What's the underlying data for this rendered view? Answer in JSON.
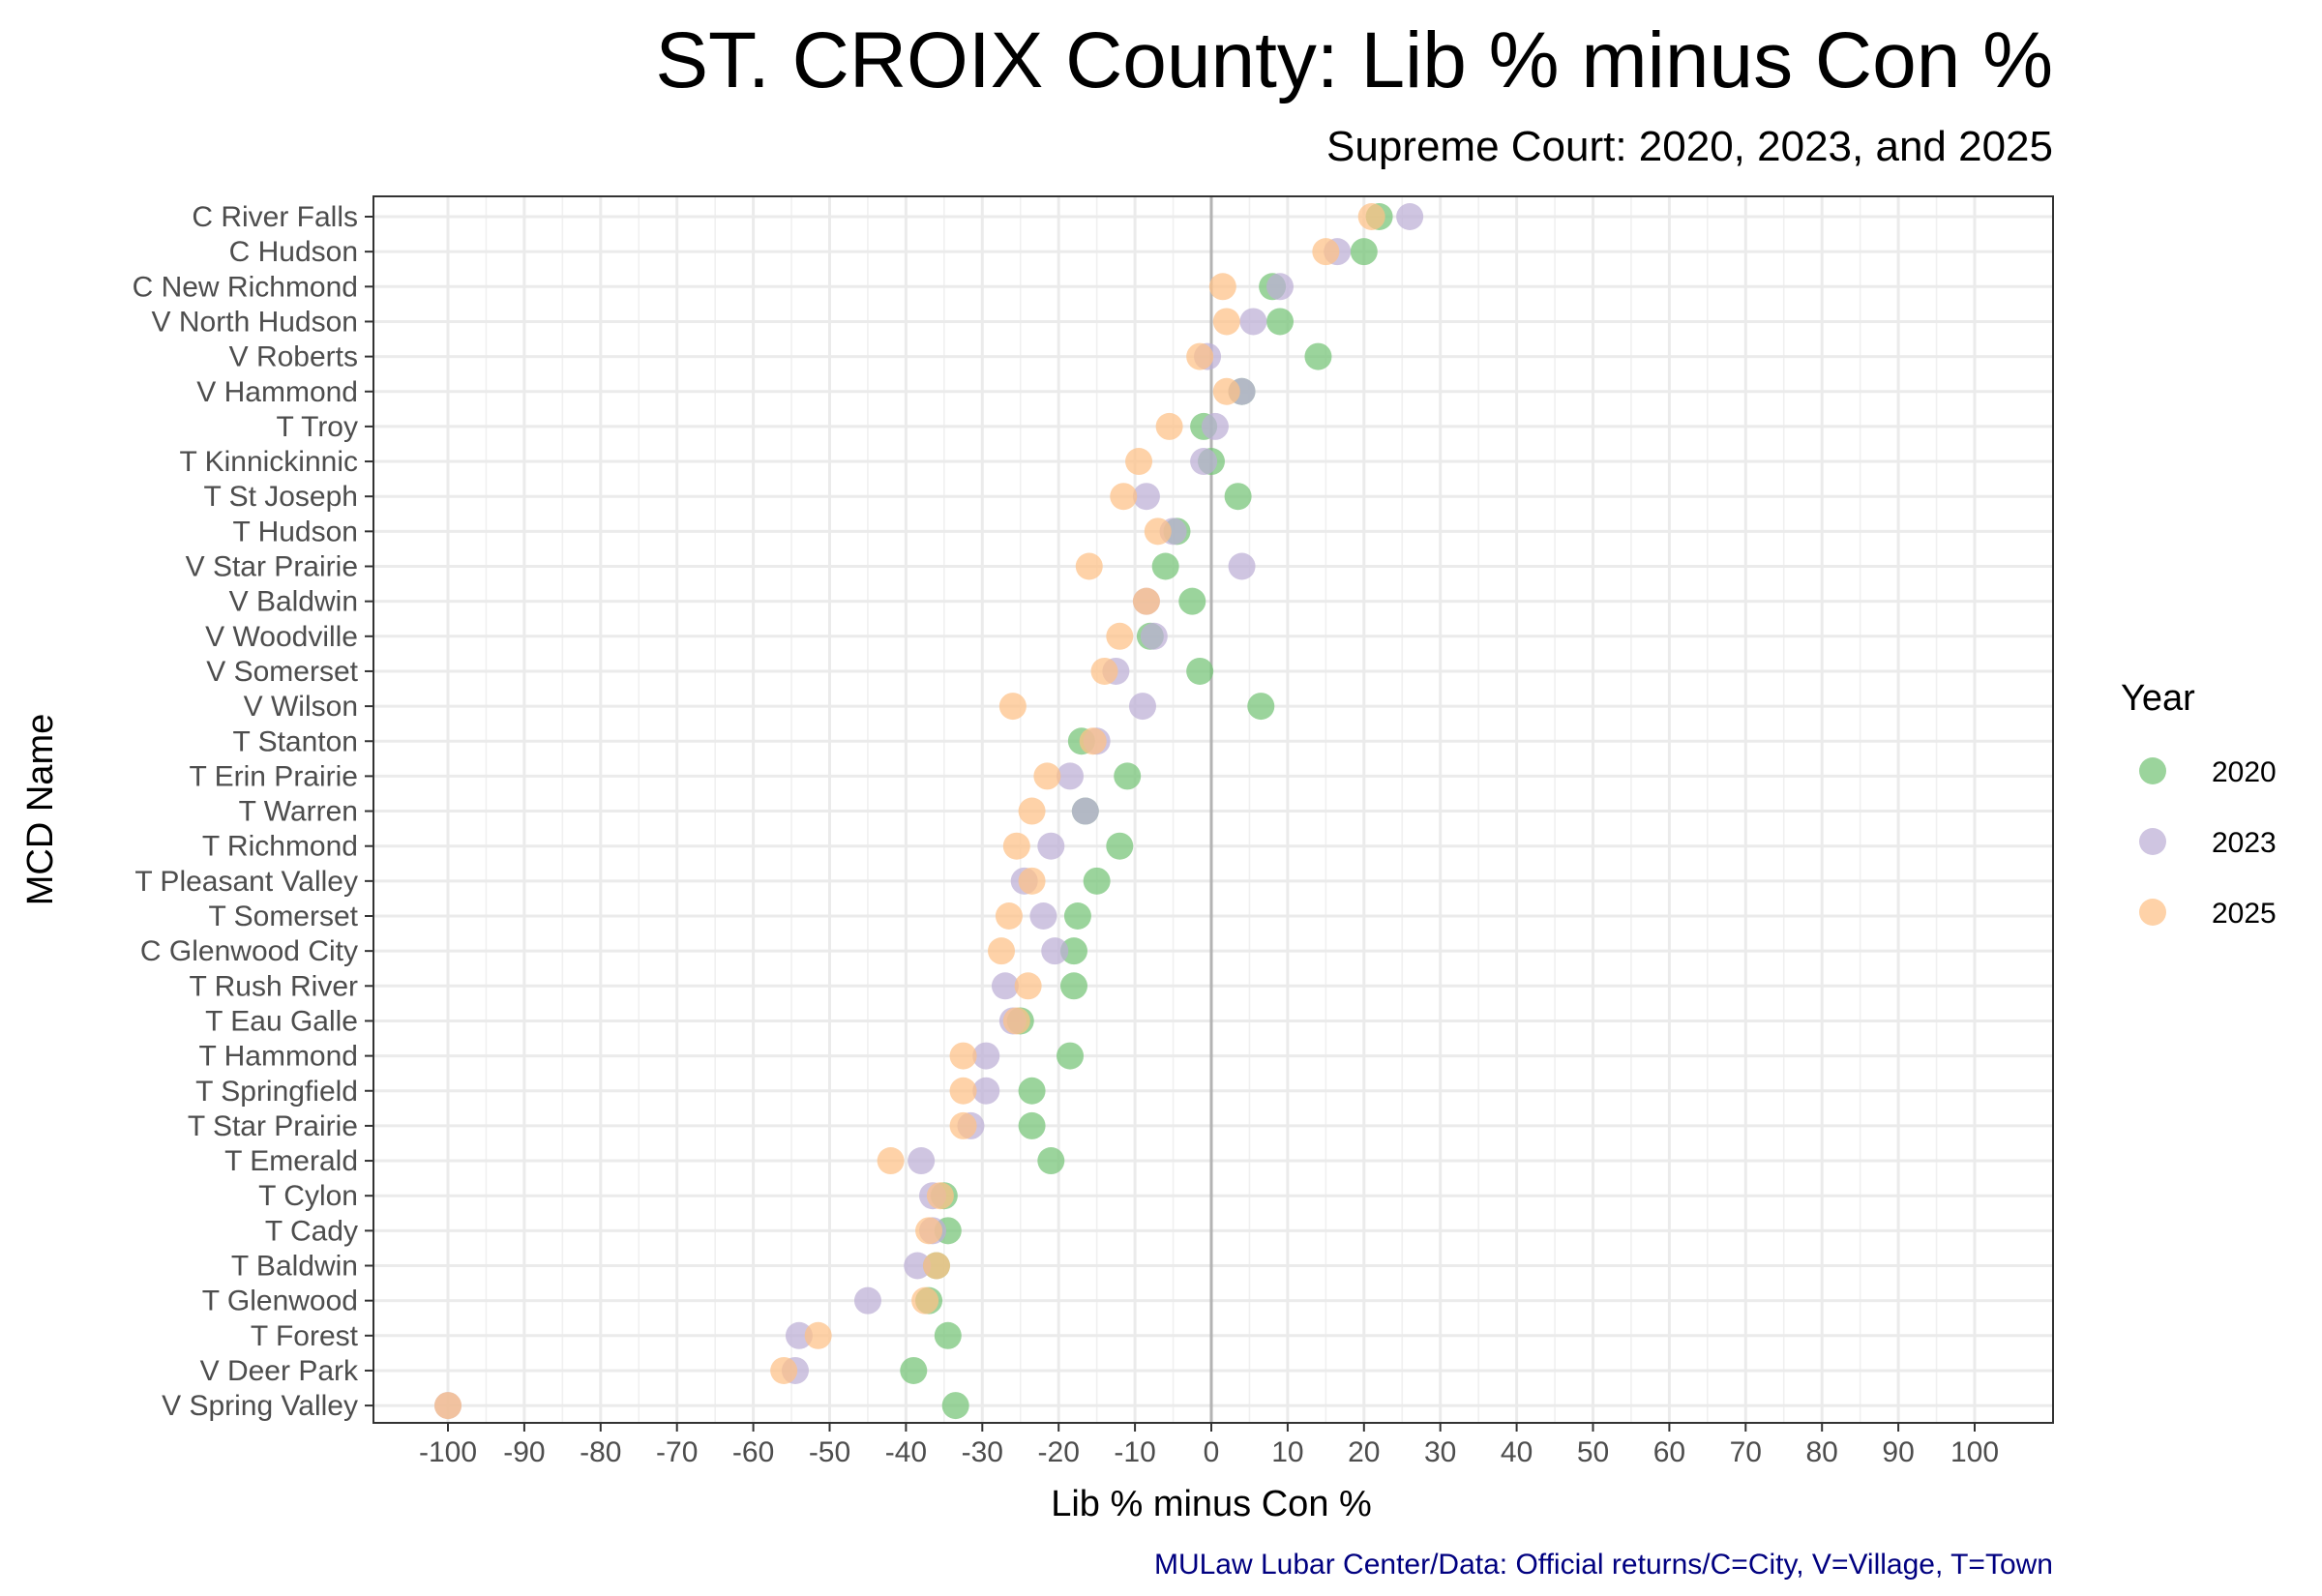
{
  "chart_data": {
    "type": "scatter",
    "title": "ST. CROIX County: Lib % minus Con %",
    "subtitle": "Supreme Court: 2020, 2023, and 2025",
    "xlabel": "Lib % minus Con %",
    "ylabel": "MCD Name",
    "xlim": [
      -110,
      110
    ],
    "x_ticks": [
      -100,
      -90,
      -80,
      -70,
      -60,
      -50,
      -40,
      -30,
      -20,
      -10,
      0,
      10,
      20,
      30,
      40,
      50,
      60,
      70,
      80,
      90,
      100
    ],
    "x_tick_labels": [
      "-100",
      "-90",
      "-80",
      "-70",
      "-60",
      "-50",
      "-40",
      "-30",
      "-20",
      "-10",
      "0",
      "10",
      "20",
      "30",
      "40",
      "50",
      "60",
      "70",
      "80",
      "90",
      "100"
    ],
    "grid": true,
    "reference_line_x": 0,
    "legend": {
      "title": "Year",
      "position": "right"
    },
    "categories": [
      "C River Falls",
      "C Hudson",
      "C New Richmond",
      "V North Hudson",
      "V Roberts",
      "V Hammond",
      "T Troy",
      "T Kinnickinnic",
      "T St Joseph",
      "T Hudson",
      "V Star Prairie",
      "V Baldwin",
      "V Woodville",
      "V Somerset",
      "V Wilson",
      "T Stanton",
      "T Erin Prairie",
      "T Warren",
      "T Richmond",
      "T Pleasant Valley",
      "T Somerset",
      "C Glenwood City",
      "T Rush River",
      "T Eau Galle",
      "T Hammond",
      "T Springfield",
      "T Star Prairie",
      "T Emerald",
      "T Cylon",
      "T Cady",
      "T Baldwin",
      "T Glenwood",
      "T Forest",
      "V Deer Park",
      "V Spring Valley"
    ],
    "series": [
      {
        "name": "2020",
        "color": "#74c476",
        "values": [
          22,
          20,
          8,
          9,
          14,
          4,
          -1,
          0,
          3.5,
          -4.5,
          -6,
          -2.5,
          -8,
          -1.5,
          6.5,
          -17,
          -11,
          -16.5,
          -12,
          -15,
          -17.5,
          -18,
          -18,
          -25,
          -18.5,
          -23.5,
          -23.5,
          -21,
          -35,
          -34.5,
          -36,
          -37,
          -34.5,
          -39,
          -33.5
        ]
      },
      {
        "name": "2023",
        "color": "#bcaed6",
        "values": [
          26,
          16.5,
          9,
          5.5,
          -0.5,
          4,
          0.5,
          -1,
          -8.5,
          -5,
          4,
          -8.5,
          -7.5,
          -12.5,
          -9,
          -15,
          -18.5,
          -16.5,
          -21,
          -24.5,
          -22,
          -20.5,
          -27,
          -26,
          -29.5,
          -29.5,
          -31.5,
          -38,
          -36.5,
          -36.5,
          -38.5,
          -45,
          -54,
          -54.5,
          -100
        ]
      },
      {
        "name": "2025",
        "color": "#fdc086",
        "values": [
          21,
          15,
          1.5,
          2,
          -1.5,
          2,
          -5.5,
          -9.5,
          -11.5,
          -7,
          -16,
          -8.5,
          -12,
          -14,
          -26,
          -15.5,
          -21.5,
          -23.5,
          -25.5,
          -23.5,
          -26.5,
          -27.5,
          -24,
          -25.5,
          -32.5,
          -32.5,
          -32.5,
          -42,
          -35.5,
          -37,
          -36,
          -37.5,
          -51.5,
          -56,
          -100
        ]
      }
    ]
  },
  "caption": "MULaw Lubar Center/Data: Official returns/C=City, V=Village, T=Town"
}
